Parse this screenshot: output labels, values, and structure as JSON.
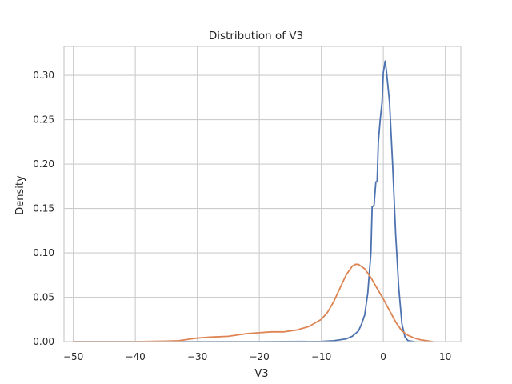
{
  "chart_data": {
    "type": "line",
    "title": "Distribution of V3",
    "xlabel": "V3",
    "ylabel": "Density",
    "xlim": [
      -51.5,
      12.5
    ],
    "ylim": [
      0,
      0.3325
    ],
    "xticks": [
      -50,
      -40,
      -30,
      -20,
      -10,
      0,
      10
    ],
    "xtick_labels": [
      "−50",
      "−40",
      "−30",
      "−20",
      "−10",
      "0",
      "10"
    ],
    "yticks": [
      0,
      0.05,
      0.1,
      0.15,
      0.2,
      0.25,
      0.3
    ],
    "ytick_labels": [
      "0.00",
      "0.05",
      "0.10",
      "0.15",
      "0.20",
      "0.25",
      "0.30"
    ],
    "grid": true,
    "colors": {
      "series_0": "#4c72b0",
      "series_1": "#dd8452",
      "grid": "#cccccc",
      "axes": "#cccccc"
    },
    "series": [
      {
        "color": "#4c72b0",
        "x": [
          -50,
          -20,
          -10,
          -8,
          -6,
          -5,
          -4,
          -3.5,
          -3,
          -2.5,
          -2,
          -1.8,
          -1.5,
          -1.2,
          -1.0,
          -0.8,
          -0.5,
          -0.2,
          0.0,
          0.3,
          0.5,
          1.0,
          1.5,
          2.0,
          2.5,
          3.0,
          3.5,
          4.0,
          5.0
        ],
        "y": [
          0,
          0,
          0.0002,
          0.001,
          0.003,
          0.006,
          0.012,
          0.02,
          0.03,
          0.055,
          0.1,
          0.152,
          0.153,
          0.18,
          0.18,
          0.225,
          0.25,
          0.27,
          0.303,
          0.316,
          0.305,
          0.27,
          0.2,
          0.12,
          0.06,
          0.02,
          0.005,
          0.001,
          0
        ]
      },
      {
        "color": "#dd8452",
        "x": [
          -50,
          -40,
          -35,
          -33,
          -31,
          -30,
          -28,
          -25,
          -22,
          -20,
          -18,
          -16,
          -14,
          -12,
          -10,
          -9,
          -8,
          -7,
          -6,
          -5,
          -4.5,
          -4,
          -3,
          -2,
          -1,
          0,
          1,
          2,
          3,
          4,
          5,
          6,
          8
        ],
        "y": [
          0,
          0,
          0.0005,
          0.001,
          0.003,
          0.004,
          0.005,
          0.006,
          0.009,
          0.01,
          0.011,
          0.011,
          0.013,
          0.017,
          0.025,
          0.033,
          0.045,
          0.06,
          0.075,
          0.085,
          0.087,
          0.087,
          0.082,
          0.072,
          0.06,
          0.048,
          0.035,
          0.022,
          0.012,
          0.007,
          0.004,
          0.002,
          0
        ]
      }
    ]
  }
}
